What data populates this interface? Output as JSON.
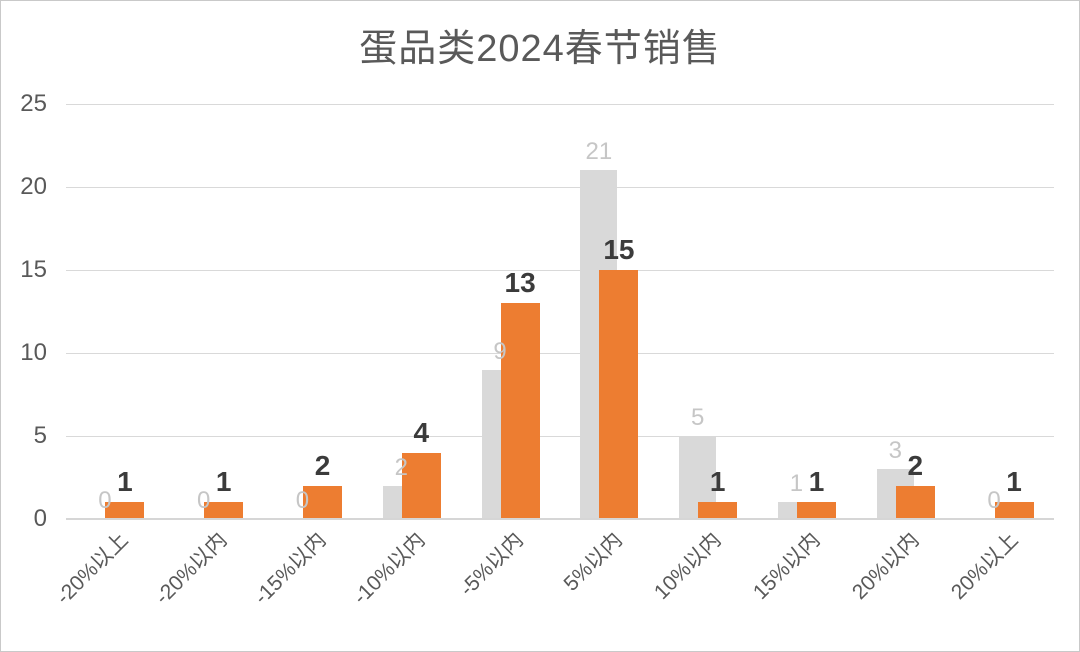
{
  "window": {
    "background": "#ffffff",
    "border_color": "#c9c9c9"
  },
  "chart_data": {
    "type": "bar",
    "title": "蛋品类2024春节销售",
    "title_color": "#595959",
    "categories": [
      "-20%以上",
      "-20%以内",
      "-15%以内",
      "-10%以内",
      "-5%以内",
      "5%以内",
      "10%以内",
      "15%以内",
      "20%以内",
      "20%以上"
    ],
    "series": [
      {
        "name": "gray",
        "color": "#d9d9d9",
        "label_color": "#c6c6c6",
        "values": [
          0,
          0,
          0,
          2,
          9,
          21,
          5,
          1,
          3,
          0
        ]
      },
      {
        "name": "orange",
        "color": "#ed7d31",
        "label_color": "#3b3b3b",
        "values": [
          1,
          1,
          2,
          4,
          13,
          15,
          1,
          1,
          2,
          1
        ]
      }
    ],
    "y_ticks": [
      0,
      5,
      10,
      15,
      20,
      25
    ],
    "ylim": [
      0,
      25
    ],
    "xlabel": "",
    "ylabel": "",
    "grid": true,
    "legend_position": "none",
    "data_labels": true,
    "axis_text_color": "#595959",
    "gridline_color": "#d9d9d9",
    "x_tick_rotation_deg": 45
  }
}
